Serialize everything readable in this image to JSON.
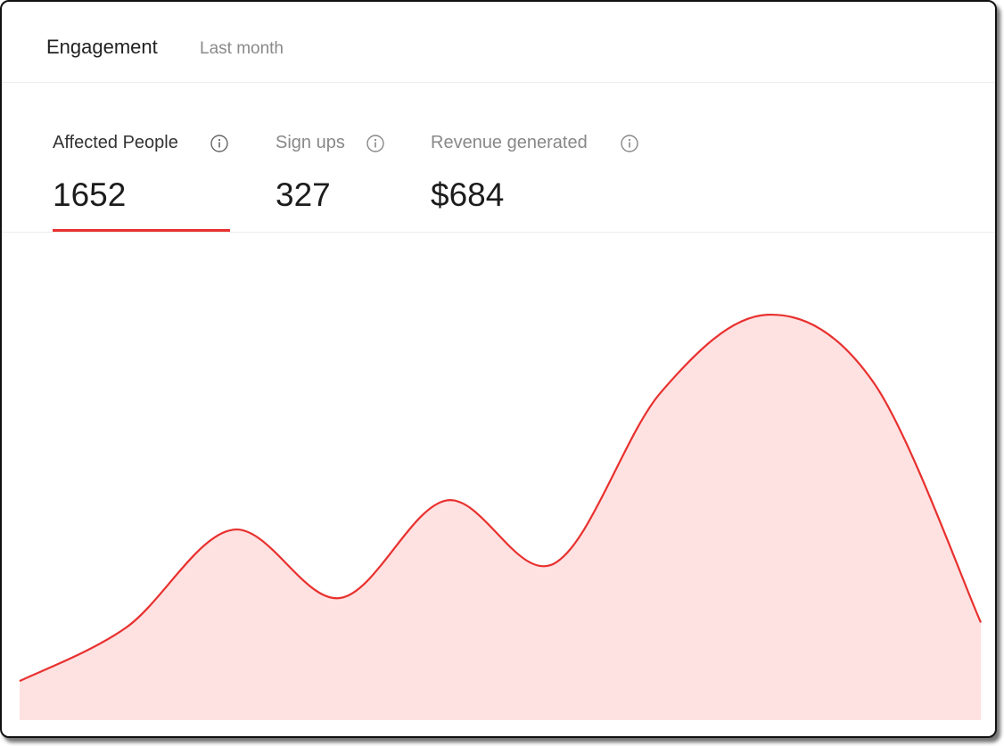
{
  "header": {
    "title": "Engagement",
    "subtitle": "Last month"
  },
  "metrics": [
    {
      "label": "Affected People",
      "value": 1652
    },
    {
      "label": "Sign ups",
      "value": 327
    },
    {
      "label": "Revenue generated",
      "value": "$684"
    }
  ],
  "chart_data": {
    "type": "area",
    "categories": [
      null,
      null,
      null,
      null,
      null,
      null,
      null,
      null,
      null,
      null
    ],
    "values": [
      8,
      19,
      39,
      25,
      45,
      32,
      67,
      83,
      69,
      20
    ],
    "ylim": [
      0,
      100
    ],
    "color": "#e8312f",
    "fill": "#fee2e1"
  }
}
